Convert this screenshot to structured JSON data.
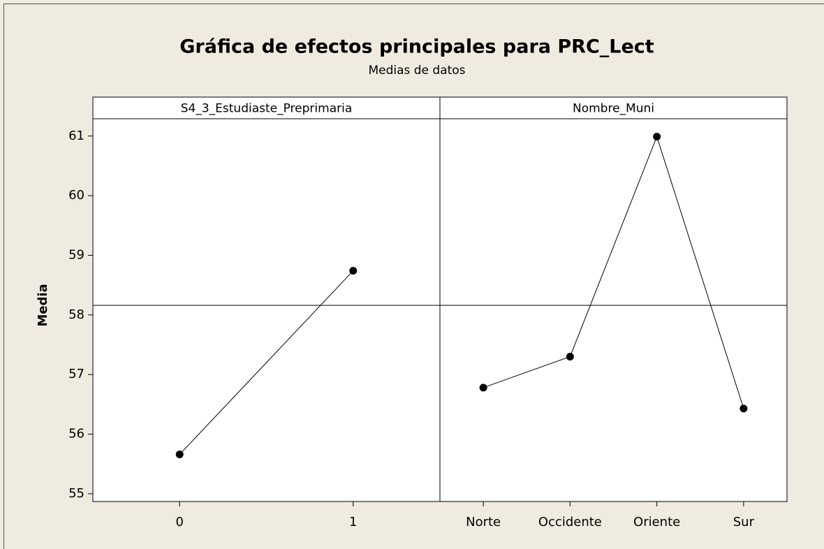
{
  "chart_data": {
    "type": "line",
    "title": "Gráfica de efectos principales para PRC_Lect",
    "subtitle": "Medias de datos",
    "y_label": "Media",
    "ylim": [
      54.87,
      61.29
    ],
    "yticks": [
      55,
      56,
      57,
      58,
      59,
      60,
      61
    ],
    "reference_line": 58.16,
    "color": "#000000",
    "panels": [
      {
        "name": "S4_3_Estudiaste_Preprimaria",
        "categories": [
          "0",
          "1"
        ],
        "values": [
          55.66,
          58.74
        ]
      },
      {
        "name": "Nombre_Muni",
        "categories": [
          "Norte",
          "Occidente",
          "Oriente",
          "Sur"
        ],
        "values": [
          56.78,
          57.3,
          60.99,
          56.43
        ]
      }
    ]
  }
}
